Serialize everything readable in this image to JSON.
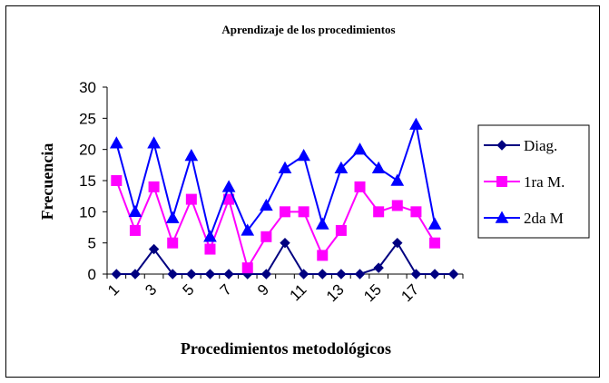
{
  "chart_data": {
    "type": "line",
    "title": "Aprendizaje de los procedimientos",
    "xlabel": "Procedimientos metodológicos",
    "ylabel": "Frecuencia",
    "x": [
      1,
      2,
      3,
      4,
      5,
      6,
      7,
      8,
      9,
      10,
      11,
      12,
      13,
      14,
      15,
      16,
      17,
      18,
      19
    ],
    "x_tick_labels": [
      "1",
      "3",
      "5",
      "7",
      "9",
      "11",
      "13",
      "15",
      "17"
    ],
    "ylim": [
      0,
      30
    ],
    "y_ticks": [
      0,
      5,
      10,
      15,
      20,
      25,
      30
    ],
    "grid": false,
    "legend_position": "right",
    "series": [
      {
        "name": "Diag.",
        "color": "#000080",
        "marker": "diamond",
        "values": [
          0,
          0,
          4,
          0,
          0,
          0,
          0,
          0,
          0,
          5,
          0,
          0,
          0,
          0,
          1,
          5,
          0,
          0,
          0
        ]
      },
      {
        "name": "1ra M.",
        "color": "#FF00FF",
        "marker": "square",
        "values": [
          15,
          7,
          14,
          5,
          12,
          4,
          12,
          1,
          6,
          10,
          10,
          3,
          7,
          14,
          10,
          11,
          10,
          5,
          null
        ]
      },
      {
        "name": "2da M",
        "color": "#0000FF",
        "marker": "triangle",
        "values": [
          21,
          10,
          21,
          9,
          19,
          6,
          14,
          7,
          11,
          17,
          19,
          8,
          17,
          20,
          17,
          15,
          24,
          8,
          null
        ]
      }
    ]
  }
}
